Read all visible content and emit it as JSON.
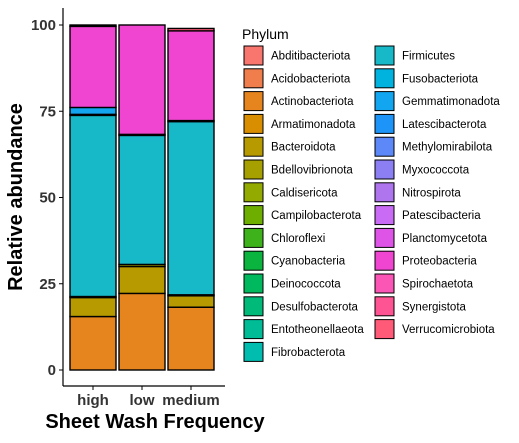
{
  "chart_data": {
    "type": "bar",
    "stacked": true,
    "xlabel": "Sheet Wash Frequency",
    "ylabel": "Relative abundance",
    "categories": [
      "high",
      "low",
      "medium"
    ],
    "yticks": [
      0,
      25,
      50,
      75,
      100
    ],
    "ylim": [
      0,
      100
    ],
    "legend": {
      "title": "Phylum",
      "placement": "right",
      "columns": 2
    },
    "series": [
      {
        "name": "Abditibacteriota",
        "color": "#F8766D",
        "values": [
          0,
          0,
          0
        ]
      },
      {
        "name": "Acidobacteriota",
        "color": "#F07E4D",
        "values": [
          0,
          0,
          0
        ]
      },
      {
        "name": "Actinobacteriota",
        "color": "#E6851E",
        "values": [
          15.5,
          22.2,
          18.2
        ]
      },
      {
        "name": "Armatimonadota",
        "color": "#D98E00",
        "values": [
          0,
          0,
          0
        ]
      },
      {
        "name": "Bacteroidota",
        "color": "#B79A00",
        "values": [
          5.5,
          7.8,
          3.3
        ]
      },
      {
        "name": "Bdellovibrionota",
        "color": "#A6A000",
        "values": [
          0.3,
          0.6,
          0.3
        ]
      },
      {
        "name": "Caldisericota",
        "color": "#93AA00",
        "values": [
          0,
          0,
          0
        ]
      },
      {
        "name": "Campilobacterota",
        "color": "#6DAE00",
        "values": [
          0,
          0,
          0
        ]
      },
      {
        "name": "Chloroflexi",
        "color": "#3DB21A",
        "values": [
          0,
          0,
          0
        ]
      },
      {
        "name": "Cyanobacteria",
        "color": "#0BB43F",
        "values": [
          0,
          0,
          0
        ]
      },
      {
        "name": "Deinococcota",
        "color": "#00B85D",
        "values": [
          0,
          0,
          0
        ]
      },
      {
        "name": "Desulfobacterota",
        "color": "#00BA7A",
        "values": [
          0,
          0,
          0
        ]
      },
      {
        "name": "Entotheonellaeota",
        "color": "#00BC96",
        "values": [
          0,
          0,
          0
        ]
      },
      {
        "name": "Fibrobacterota",
        "color": "#00BDB0",
        "values": [
          0,
          0,
          0
        ]
      },
      {
        "name": "Firmicutes",
        "color": "#17B8C8",
        "values": [
          52.5,
          37.4,
          50.2
        ]
      },
      {
        "name": "Fusobacteriota",
        "color": "#00B2DE",
        "values": [
          0.3,
          0.3,
          0.3
        ]
      },
      {
        "name": "Gemmatimonadota",
        "color": "#12A6F0",
        "values": [
          2.0,
          0,
          0
        ]
      },
      {
        "name": "Latescibacterota",
        "color": "#1C94F8",
        "values": [
          0,
          0,
          0
        ]
      },
      {
        "name": "Methylomirabilota",
        "color": "#5C88F8",
        "values": [
          0,
          0,
          0
        ]
      },
      {
        "name": "Myxococcota",
        "color": "#8C7FF3",
        "values": [
          0,
          0,
          0
        ]
      },
      {
        "name": "Nitrospirota",
        "color": "#AE75EE",
        "values": [
          0,
          0,
          0
        ]
      },
      {
        "name": "Patescibacteria",
        "color": "#C96BF5",
        "values": [
          0,
          0,
          0
        ]
      },
      {
        "name": "Planctomycetota",
        "color": "#DE54E6",
        "values": [
          0,
          0,
          0
        ]
      },
      {
        "name": "Proteobacteria",
        "color": "#F045D0",
        "values": [
          23.5,
          31.7,
          26.0
        ]
      },
      {
        "name": "Spirochaetota",
        "color": "#FB55B6",
        "values": [
          0,
          0,
          0
        ]
      },
      {
        "name": "Synergistota",
        "color": "#FE5494",
        "values": [
          0,
          0,
          0
        ]
      },
      {
        "name": "Verrucomicrobiota",
        "color": "#FF5A77",
        "values": [
          0.4,
          0,
          0.7
        ]
      }
    ]
  }
}
